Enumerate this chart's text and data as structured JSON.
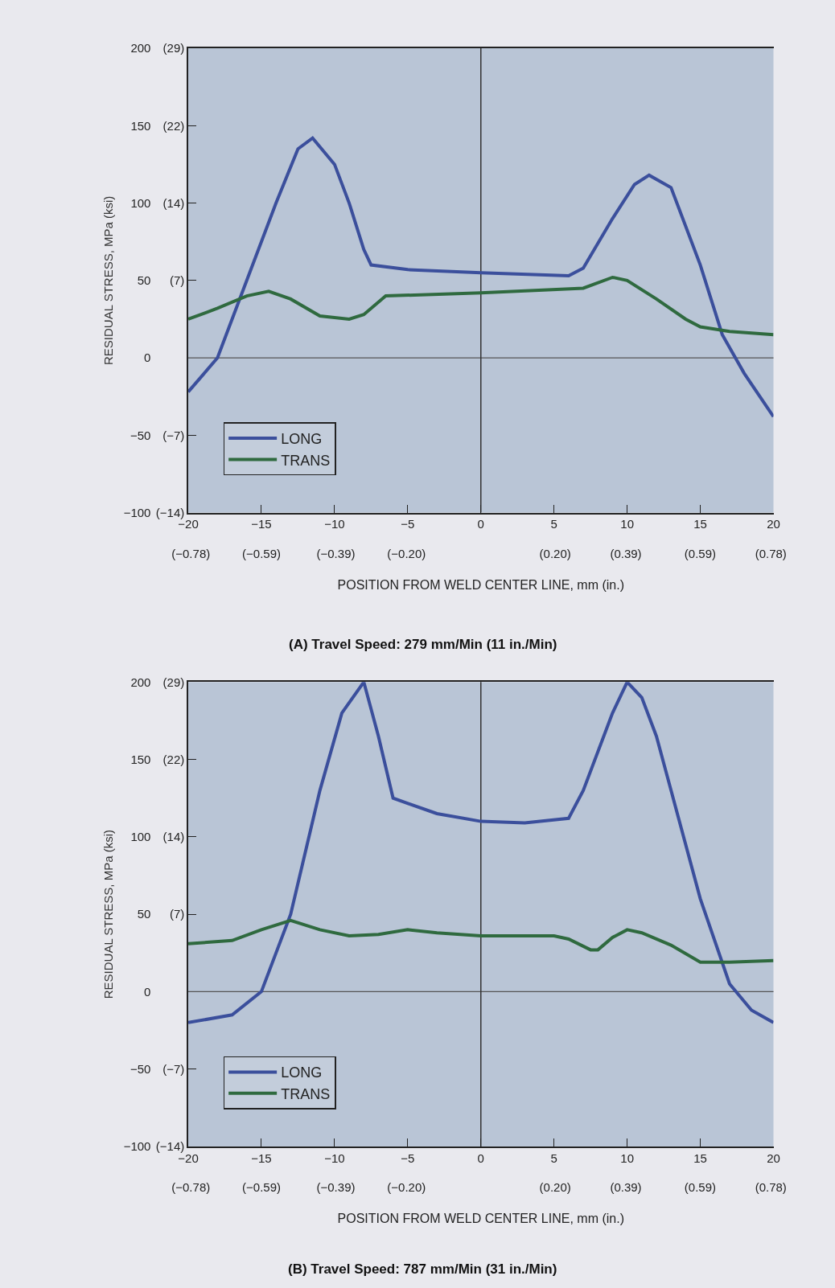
{
  "chart_data": [
    {
      "type": "line",
      "title": "(A) Travel Speed: 279 mm/Min (11 in./Min)",
      "xlabel": "POSITION FROM WELD CENTER LINE, mm (in.)",
      "ylabel": "RESIDUAL STRESS, MPa (ksi)",
      "xlim": [
        -20,
        20
      ],
      "ylim": [
        -100,
        200
      ],
      "xticks": [
        -20,
        -15,
        -10,
        -5,
        0,
        5,
        10,
        15,
        20
      ],
      "x2lim": [
        -0.787,
        0.787
      ],
      "x2ticks": [
        {
          "value": -0.78,
          "label": "(−0.78)"
        },
        {
          "value": -0.59,
          "label": "(−0.59)"
        },
        {
          "value": -0.39,
          "label": "(−0.39)"
        },
        {
          "value": -0.2,
          "label": "(−0.20)"
        },
        {
          "value": 0.2,
          "label": "(0.20)"
        },
        {
          "value": 0.39,
          "label": "(0.39)"
        },
        {
          "value": 0.59,
          "label": "(0.59)"
        },
        {
          "value": 0.78,
          "label": "(0.78)"
        }
      ],
      "yticks": [
        -100,
        -50,
        0,
        50,
        100,
        150,
        200
      ],
      "y2lim": [
        -14.5,
        29
      ],
      "y2ticks": [
        {
          "value": 29,
          "label": "(29)"
        },
        {
          "value": 21.75,
          "label": "(22)"
        },
        {
          "value": 14.5,
          "label": "(14)"
        },
        {
          "value": 7.25,
          "label": "(7)"
        },
        {
          "value": -7.25,
          "label": "(−7)"
        },
        {
          "value": -14.5,
          "label": "(−14)"
        }
      ],
      "grid": false,
      "legend": "bottom left",
      "marker": "none",
      "line_style": "solid",
      "ref_lines": [
        {
          "axis": "y",
          "value": 0,
          "color": "#555555"
        },
        {
          "axis": "x",
          "value": 0,
          "color": "#333333"
        }
      ],
      "series": [
        {
          "name": "LONG",
          "color": "#3b4f9c",
          "x": [
            -20,
            -18,
            -16,
            -14,
            -12.5,
            -11.5,
            -10,
            -9,
            -8,
            -7.5,
            -5,
            0,
            6,
            7,
            9,
            10.5,
            11.5,
            13,
            15,
            16.5,
            18,
            20
          ],
          "values": [
            -22,
            0,
            50,
            100,
            135,
            142,
            125,
            100,
            70,
            60,
            57,
            55,
            53,
            58,
            90,
            112,
            118,
            110,
            60,
            15,
            -10,
            -38
          ]
        },
        {
          "name": "TRANS",
          "color": "#2f6a3f",
          "x": [
            -20,
            -18,
            -16,
            -14.5,
            -13,
            -11,
            -9,
            -8,
            -6.5,
            0,
            7,
            9,
            10,
            12,
            14,
            15,
            17,
            20
          ],
          "values": [
            25,
            32,
            40,
            43,
            38,
            27,
            25,
            28,
            40,
            42,
            45,
            52,
            50,
            38,
            25,
            20,
            17,
            15
          ]
        }
      ]
    },
    {
      "type": "line",
      "title": "(B) Travel Speed: 787 mm/Min (31 in./Min)",
      "xlabel": "POSITION FROM WELD CENTER LINE, mm (in.)",
      "ylabel": "RESIDUAL STRESS, MPa (ksi)",
      "xlim": [
        -20,
        20
      ],
      "ylim": [
        -100,
        200
      ],
      "xticks": [
        -20,
        -15,
        -10,
        -5,
        0,
        5,
        10,
        15,
        20
      ],
      "x2lim": [
        -0.787,
        0.787
      ],
      "x2ticks": [
        {
          "value": -0.78,
          "label": "(−0.78)"
        },
        {
          "value": -0.59,
          "label": "(−0.59)"
        },
        {
          "value": -0.39,
          "label": "(−0.39)"
        },
        {
          "value": -0.2,
          "label": "(−0.20)"
        },
        {
          "value": 0.2,
          "label": "(0.20)"
        },
        {
          "value": 0.39,
          "label": "(0.39)"
        },
        {
          "value": 0.59,
          "label": "(0.59)"
        },
        {
          "value": 0.78,
          "label": "(0.78)"
        }
      ],
      "yticks": [
        -100,
        -50,
        0,
        50,
        100,
        150,
        200
      ],
      "y2lim": [
        -14.5,
        29
      ],
      "y2ticks": [
        {
          "value": 29,
          "label": "(29)"
        },
        {
          "value": 21.75,
          "label": "(22)"
        },
        {
          "value": 14.5,
          "label": "(14)"
        },
        {
          "value": 7.25,
          "label": "(7)"
        },
        {
          "value": -7.25,
          "label": "(−7)"
        },
        {
          "value": -14.5,
          "label": "(−14)"
        }
      ],
      "grid": false,
      "legend": "bottom left",
      "marker": "none",
      "line_style": "solid",
      "ref_lines": [
        {
          "axis": "y",
          "value": 0,
          "color": "#555555"
        },
        {
          "axis": "x",
          "value": 0,
          "color": "#333333"
        }
      ],
      "series": [
        {
          "name": "LONG",
          "color": "#3b4f9c",
          "x": [
            -20,
            -17,
            -15,
            -13,
            -11,
            -9.5,
            -8,
            -7,
            -6,
            -3,
            0,
            3,
            6,
            7,
            9,
            10,
            11,
            12,
            13,
            15,
            17,
            18.5,
            20
          ],
          "values": [
            -20,
            -15,
            0,
            50,
            130,
            180,
            200,
            165,
            125,
            115,
            110,
            109,
            112,
            130,
            180,
            200,
            190,
            165,
            130,
            60,
            5,
            -12,
            -20
          ]
        },
        {
          "name": "TRANS",
          "color": "#2f6a3f",
          "x": [
            -20,
            -17,
            -15,
            -13,
            -11,
            -9,
            -7,
            -5,
            -3,
            0,
            5,
            6,
            7.5,
            8,
            9,
            10,
            11,
            13,
            15,
            17,
            20
          ],
          "values": [
            31,
            33,
            40,
            46,
            40,
            36,
            37,
            40,
            38,
            36,
            36,
            34,
            27,
            27,
            35,
            40,
            38,
            30,
            19,
            19,
            20
          ]
        }
      ]
    }
  ]
}
